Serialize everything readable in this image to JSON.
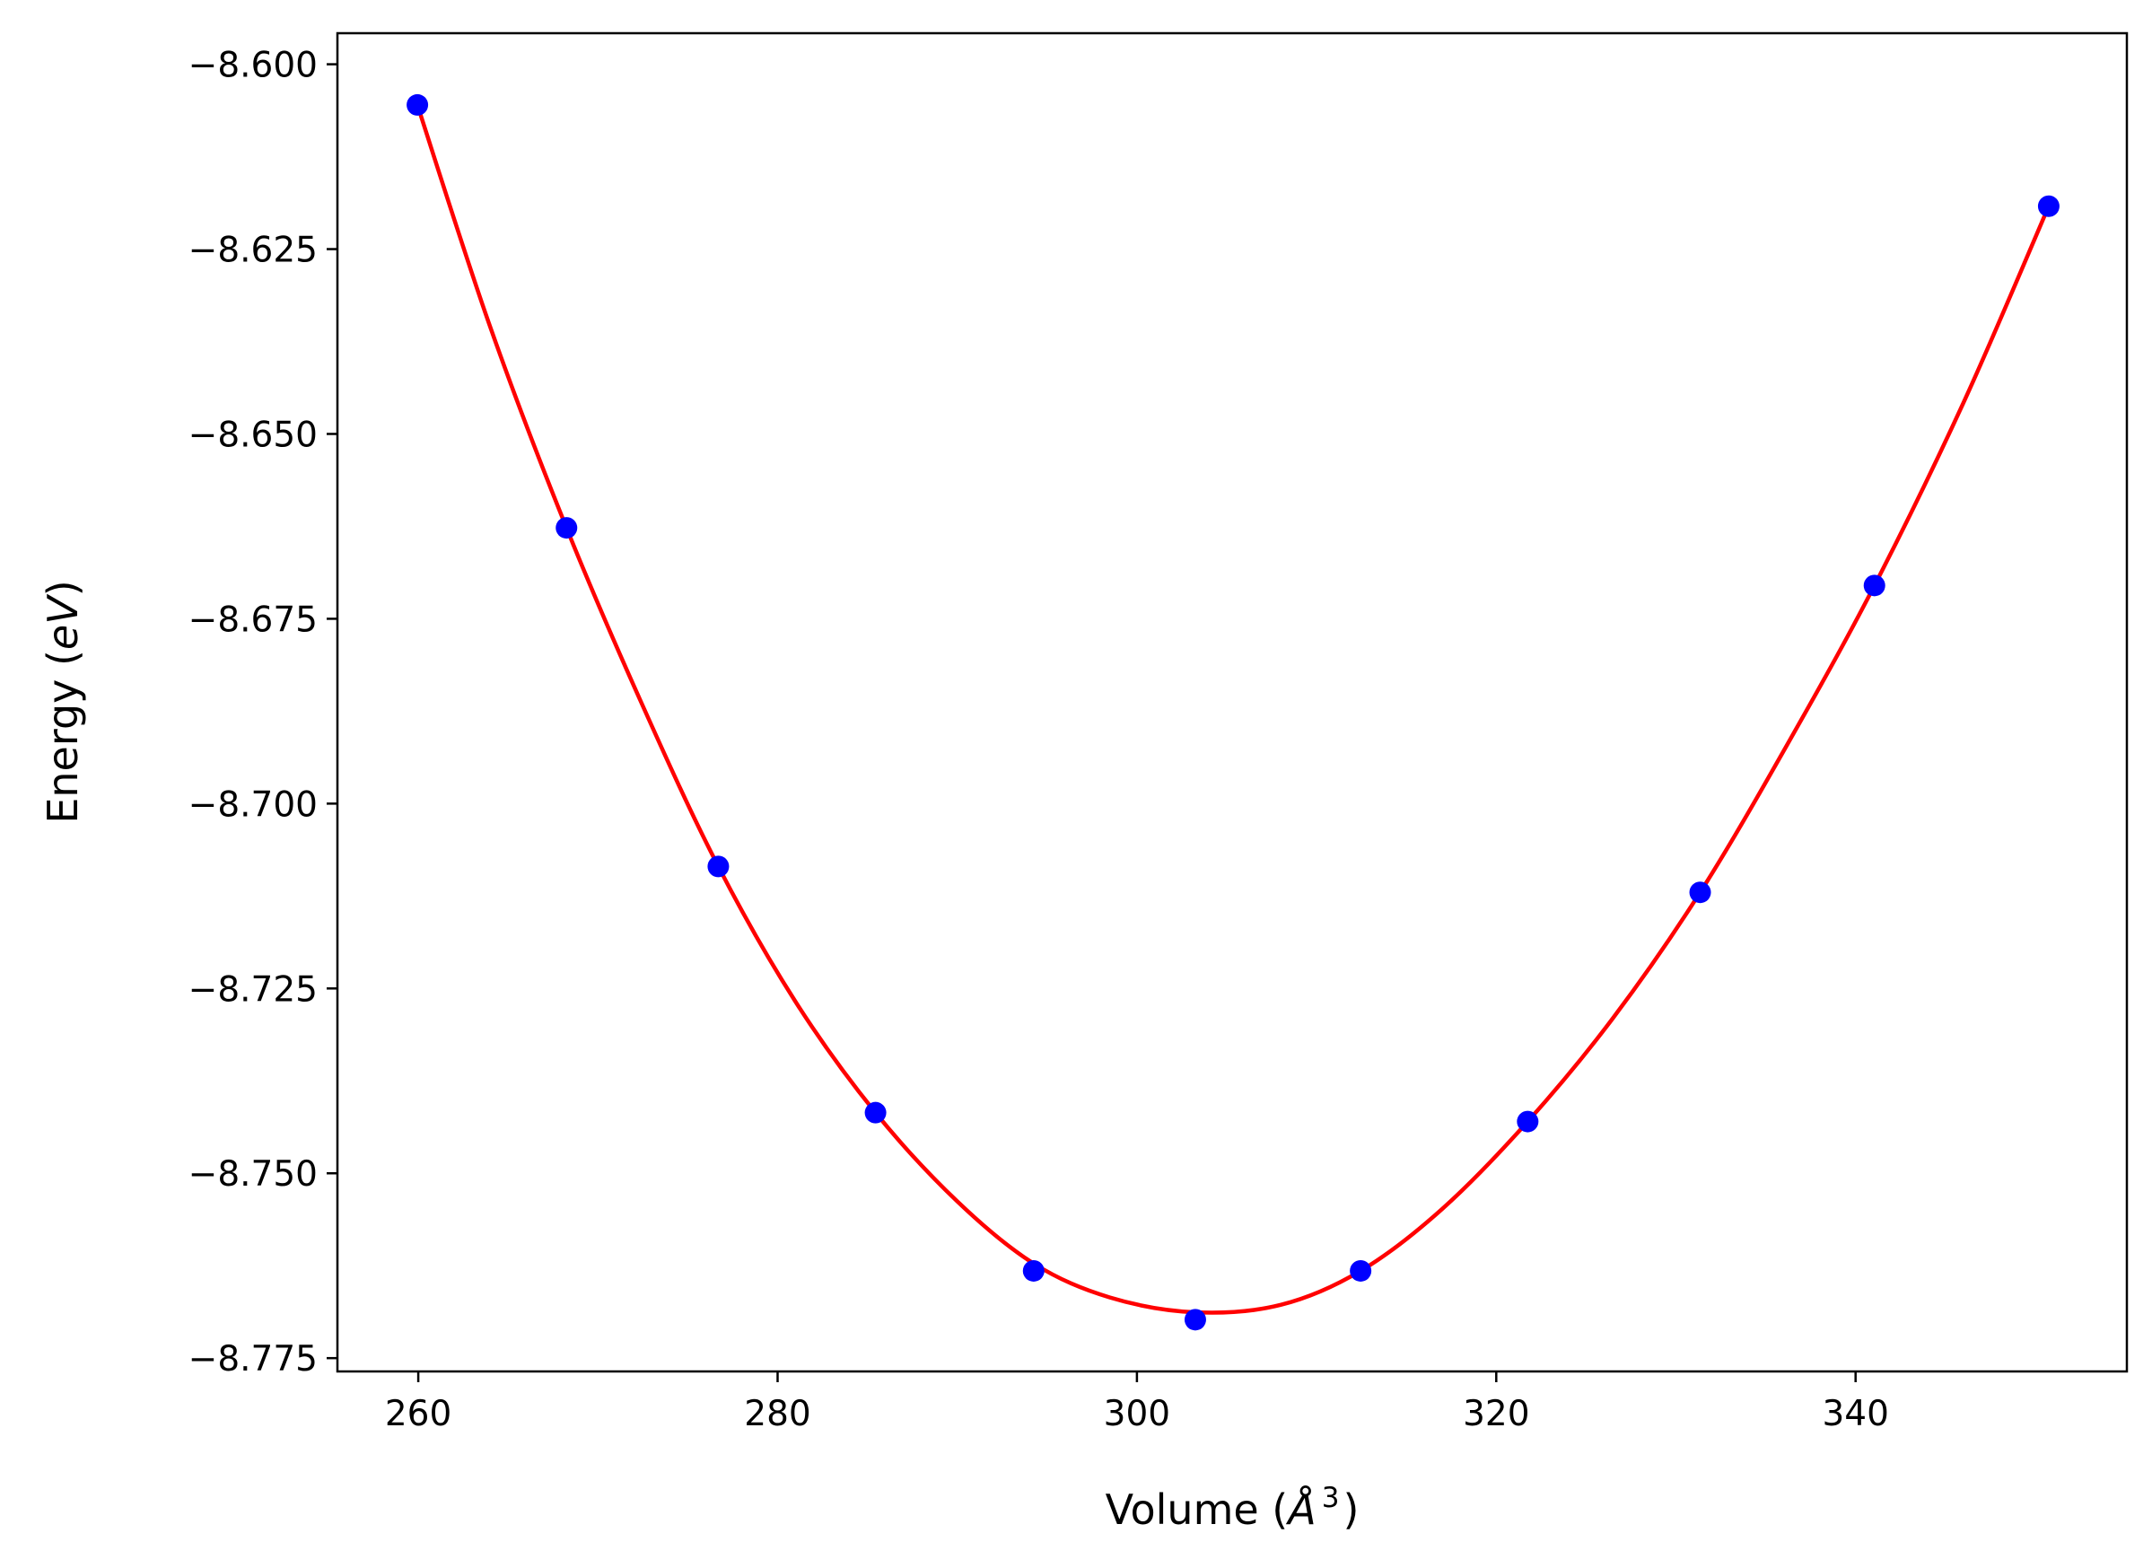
{
  "chart_data": {
    "type": "line",
    "title": "",
    "xlabel": "Volume (Å³)",
    "ylabel": "Energy (eV)",
    "xlabel_parts": {
      "prefix": "Volume (",
      "symbol": "Å",
      "exponent": "3",
      "suffix": ")"
    },
    "ylabel_parts": {
      "prefix": "Energy (",
      "unit": "eV",
      "suffix": ")"
    },
    "xlim": [
      255.5,
      355.1
    ],
    "ylim": [
      -8.7768,
      -8.5958
    ],
    "xticks": [
      260,
      280,
      300,
      320,
      340
    ],
    "xtick_labels": [
      "260",
      "280",
      "300",
      "320",
      "340"
    ],
    "yticks": [
      -8.6,
      -8.625,
      -8.65,
      -8.675,
      -8.7,
      -8.725,
      -8.75,
      -8.775
    ],
    "ytick_labels": [
      "−8.600",
      "−8.625",
      "−8.650",
      "−8.675",
      "−8.700",
      "−8.725",
      "−8.750",
      "−8.775"
    ],
    "grid": false,
    "series": [
      {
        "kind": "scatter",
        "color": "#0000ff",
        "x": [
          259.95,
          268.25,
          276.7,
          285.45,
          294.25,
          303.25,
          312.45,
          321.75,
          331.35,
          341.05,
          350.75
        ],
        "y": [
          -8.6055,
          -8.6627,
          -8.7085,
          -8.7418,
          -8.7632,
          -8.7698,
          -8.7632,
          -8.743,
          -8.712,
          -8.6705,
          -8.6192
        ]
      },
      {
        "kind": "line",
        "color": "#ff0000",
        "x": [
          259.95,
          264.0,
          268.25,
          272.5,
          276.7,
          281.0,
          285.45,
          290.0,
          294.25,
          298.5,
          303.25,
          308.0,
          312.45,
          317.0,
          321.75,
          326.5,
          331.35,
          336.2,
          341.05,
          346.0,
          350.75
        ],
        "y": [
          -8.6055,
          -8.6355,
          -8.6627,
          -8.6868,
          -8.7085,
          -8.7268,
          -8.7418,
          -8.7538,
          -8.7622,
          -8.7668,
          -8.7688,
          -8.7678,
          -8.7632,
          -8.7548,
          -8.743,
          -8.729,
          -8.712,
          -8.692,
          -8.6705,
          -8.6458,
          -8.6192
        ]
      }
    ]
  }
}
